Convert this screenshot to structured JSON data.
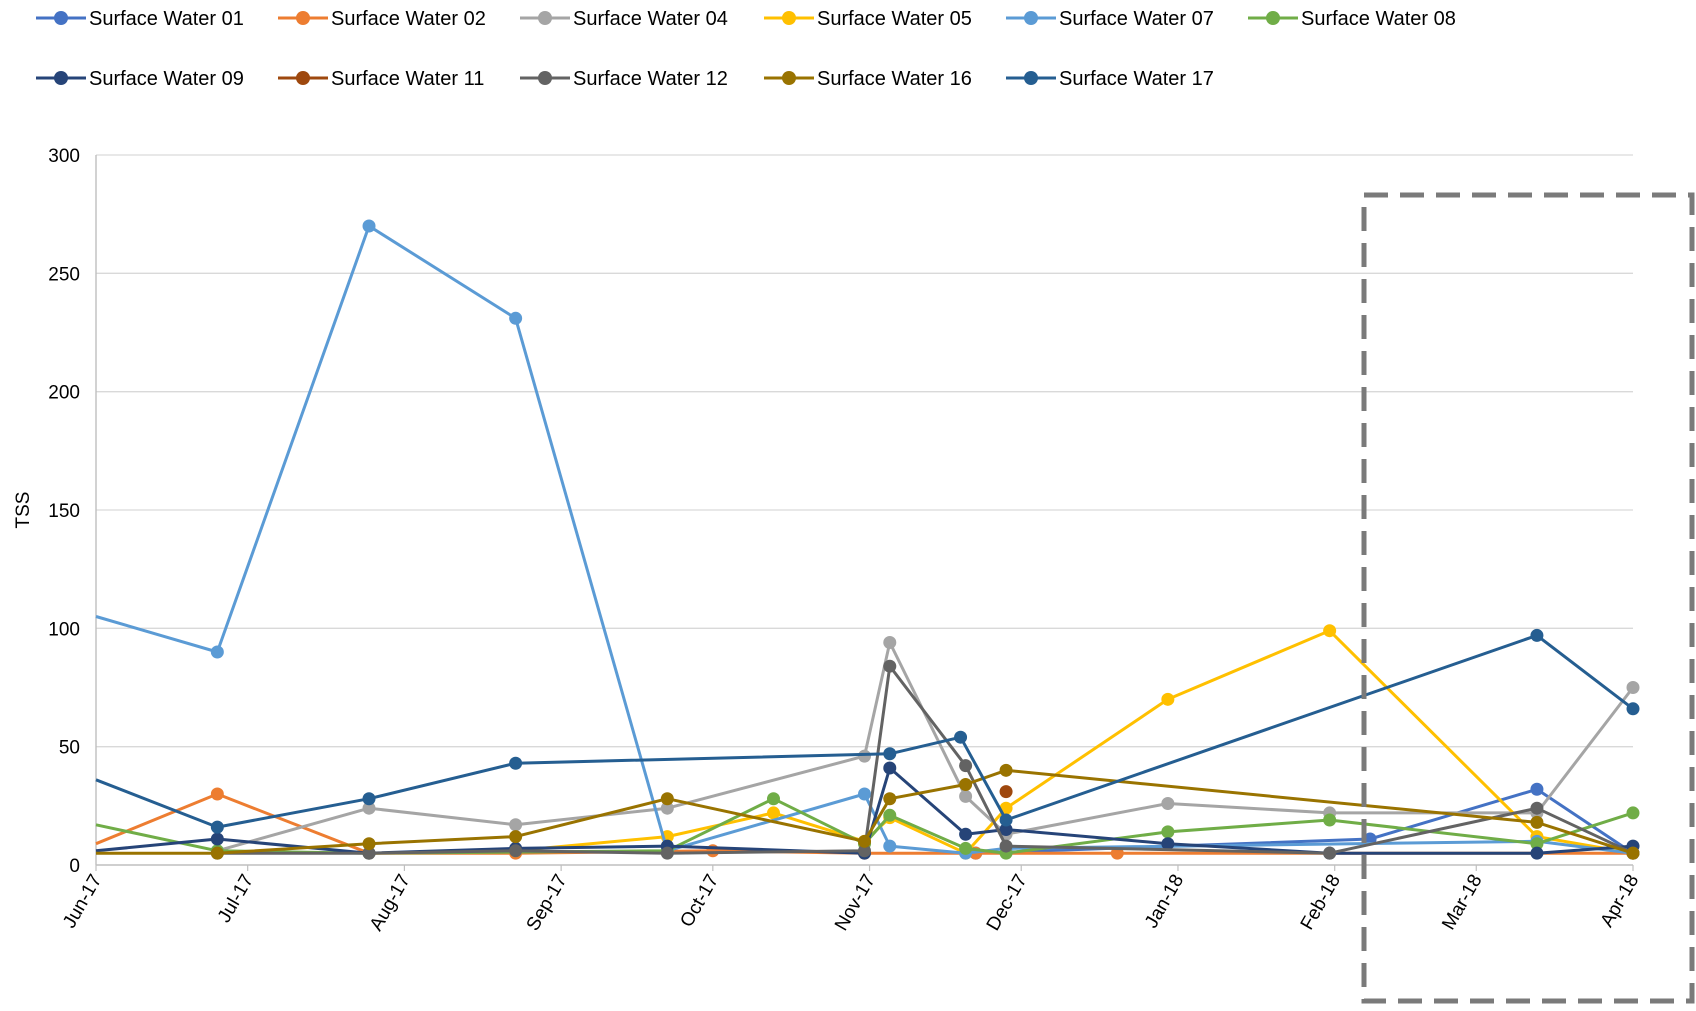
{
  "chart_data": {
    "type": "line",
    "title": "",
    "xlabel": "",
    "ylabel": "TSS",
    "ylim": [
      0,
      300
    ],
    "yticks": [
      0,
      50,
      100,
      150,
      200,
      250,
      300
    ],
    "xticks": [
      "Jun-17",
      "Jul-17",
      "Aug-17",
      "Sep-17",
      "Oct-17",
      "Nov-17",
      "Dec-17",
      "Jan-18",
      "Feb-18",
      "Mar-18",
      "Apr-18"
    ],
    "xlim": [
      "2017-06-01",
      "2018-04-01"
    ],
    "grid": "horizontal",
    "legend_position": "top",
    "highlight_box": "dashed box around Mar-18 to Apr-18",
    "series": [
      {
        "name": "Surface Water 01",
        "color": "#4472C4",
        "points": [
          [
            "2017-11-22",
            5
          ],
          [
            "2018-02-08",
            11
          ],
          [
            "2018-03-13",
            32
          ],
          [
            "2018-04-01",
            5
          ]
        ]
      },
      {
        "name": "Surface Water 02",
        "color": "#ED7D31",
        "points": [
          [
            "2017-06-01",
            9
          ],
          [
            "2017-06-25",
            30
          ],
          [
            "2017-07-25",
            5
          ],
          [
            "2017-08-23",
            5
          ],
          [
            "2017-10-01",
            6
          ],
          [
            "2017-10-31",
            5
          ],
          [
            "2017-11-22",
            5
          ],
          [
            "2017-12-20",
            5
          ],
          [
            "2018-04-01",
            5
          ]
        ]
      },
      {
        "name": "Surface Water 04",
        "color": "#A5A5A5",
        "points": [
          [
            "2017-06-25",
            6
          ],
          [
            "2017-07-25",
            24
          ],
          [
            "2017-08-23",
            17
          ],
          [
            "2017-09-22",
            24
          ],
          [
            "2017-10-31",
            46
          ],
          [
            "2017-11-05",
            94
          ],
          [
            "2017-11-20",
            29
          ],
          [
            "2017-11-28",
            13
          ],
          [
            "2017-12-30",
            26
          ],
          [
            "2018-01-31",
            22
          ],
          [
            "2018-03-13",
            22
          ],
          [
            "2018-04-01",
            75
          ]
        ]
      },
      {
        "name": "Surface Water 05",
        "color": "#FFC000",
        "points": [
          [
            "2017-08-23",
            6
          ],
          [
            "2017-09-22",
            12
          ],
          [
            "2017-10-13",
            22
          ],
          [
            "2017-10-31",
            10
          ],
          [
            "2017-11-05",
            20
          ],
          [
            "2017-11-20",
            5
          ],
          [
            "2017-11-28",
            24
          ],
          [
            "2017-12-30",
            70
          ],
          [
            "2018-01-31",
            99
          ],
          [
            "2018-03-13",
            12
          ],
          [
            "2018-04-01",
            5
          ]
        ]
      },
      {
        "name": "Surface Water 07",
        "color": "#5B9BD5",
        "points": [
          [
            "2017-06-01",
            105
          ],
          [
            "2017-06-25",
            90
          ],
          [
            "2017-07-25",
            270
          ],
          [
            "2017-08-23",
            231
          ],
          [
            "2017-09-22",
            6
          ],
          [
            "2017-10-31",
            30
          ],
          [
            "2017-11-05",
            8
          ],
          [
            "2017-11-20",
            5
          ],
          [
            "2017-11-28",
            7
          ],
          [
            "2018-03-13",
            10
          ],
          [
            "2018-04-01",
            5
          ]
        ]
      },
      {
        "name": "Surface Water 08",
        "color": "#70AD47",
        "points": [
          [
            "2017-06-01",
            17
          ],
          [
            "2017-06-25",
            6
          ],
          [
            "2017-07-25",
            5
          ],
          [
            "2017-09-22",
            6
          ],
          [
            "2017-10-13",
            28
          ],
          [
            "2017-10-31",
            9
          ],
          [
            "2017-11-05",
            21
          ],
          [
            "2017-11-20",
            7
          ],
          [
            "2017-11-28",
            5
          ],
          [
            "2017-12-30",
            14
          ],
          [
            "2018-01-31",
            19
          ],
          [
            "2018-03-13",
            9
          ],
          [
            "2018-04-01",
            22
          ]
        ]
      },
      {
        "name": "Surface Water 09",
        "color": "#264478",
        "points": [
          [
            "2017-06-01",
            6
          ],
          [
            "2017-06-25",
            11
          ],
          [
            "2017-07-25",
            5
          ],
          [
            "2017-08-23",
            7
          ],
          [
            "2017-09-22",
            8
          ],
          [
            "2017-10-31",
            5
          ],
          [
            "2017-11-05",
            41
          ],
          [
            "2017-11-20",
            13
          ],
          [
            "2017-11-28",
            15
          ],
          [
            "2017-12-30",
            9
          ],
          [
            "2018-01-31",
            5
          ],
          [
            "2018-03-13",
            5
          ],
          [
            "2018-04-01",
            8
          ]
        ]
      },
      {
        "name": "Surface Water 11",
        "color": "#9E480E",
        "points": [
          [
            "2017-11-28",
            31
          ]
        ]
      },
      {
        "name": "Surface Water 12",
        "color": "#636363",
        "points": [
          [
            "2017-06-25",
            5
          ],
          [
            "2017-07-25",
            5
          ],
          [
            "2017-08-23",
            6
          ],
          [
            "2017-09-22",
            5
          ],
          [
            "2017-10-31",
            6
          ],
          [
            "2017-11-05",
            84
          ],
          [
            "2017-11-20",
            42
          ],
          [
            "2017-11-28",
            8
          ],
          [
            "2018-01-31",
            5
          ],
          [
            "2018-03-13",
            24
          ],
          [
            "2018-04-01",
            5
          ]
        ]
      },
      {
        "name": "Surface Water 16",
        "color": "#997300",
        "points": [
          [
            "2017-06-01",
            5
          ],
          [
            "2017-06-25",
            5
          ],
          [
            "2017-07-25",
            9
          ],
          [
            "2017-08-23",
            12
          ],
          [
            "2017-09-22",
            28
          ],
          [
            "2017-10-31",
            10
          ],
          [
            "2017-11-05",
            28
          ],
          [
            "2017-11-20",
            34
          ],
          [
            "2017-11-28",
            40
          ],
          [
            "2018-03-13",
            18
          ],
          [
            "2018-04-01",
            5
          ]
        ]
      },
      {
        "name": "Surface Water 17",
        "color": "#255E91",
        "points": [
          [
            "2017-06-01",
            36
          ],
          [
            "2017-06-25",
            16
          ],
          [
            "2017-07-25",
            28
          ],
          [
            "2017-08-23",
            43
          ],
          [
            "2017-11-05",
            47
          ],
          [
            "2017-11-19",
            54
          ],
          [
            "2017-11-28",
            19
          ],
          [
            "2018-03-13",
            97
          ],
          [
            "2018-04-01",
            66
          ]
        ]
      }
    ]
  }
}
